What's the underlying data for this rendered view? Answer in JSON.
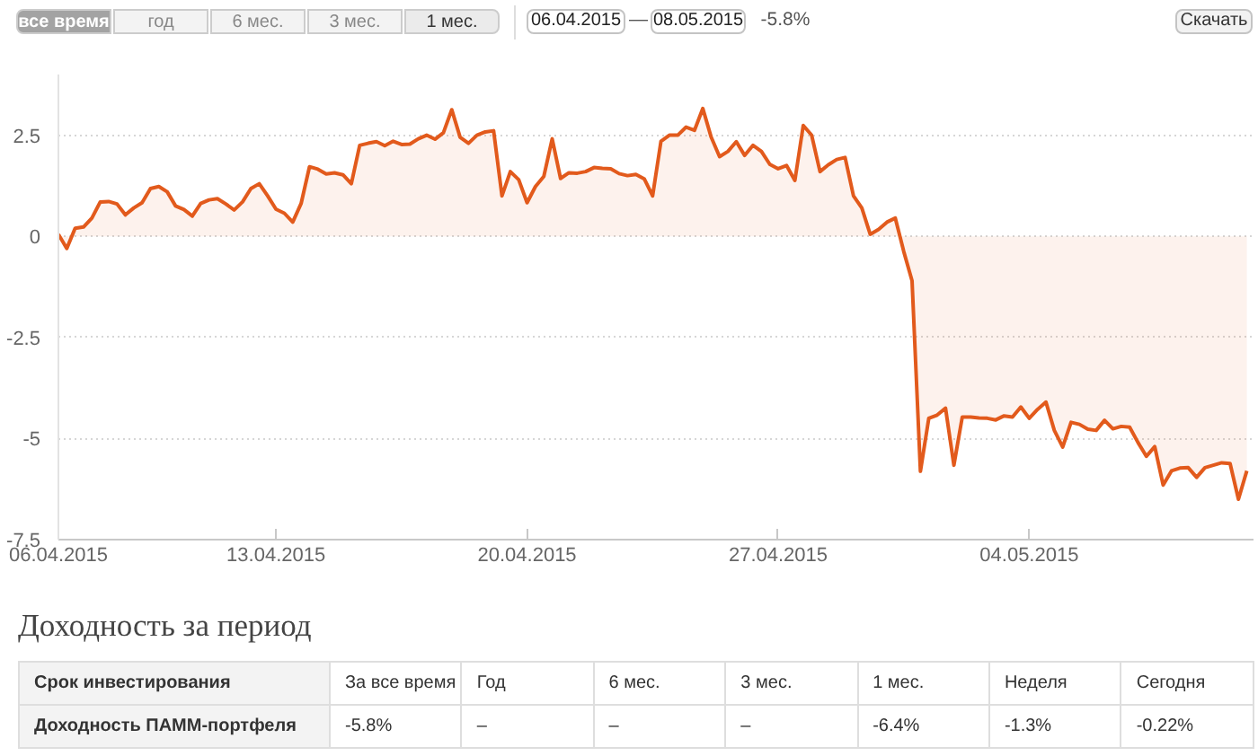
{
  "chart_data": [
    {
      "type": "other",
      "categories": [
        "все время",
        "год",
        "6 мес.",
        "3 мес.",
        "1 мес."
      ],
      "colors": [
        "#a3a3a3",
        "#f3f3f3",
        "#f3f3f3",
        "#f3f3f3",
        "#ebebeb"
      ],
      "annotations": [
        "06.04.2015",
        "—",
        "08.05.2015",
        "-5.8%",
        "Скачать"
      ]
    },
    {
      "type": "area",
      "color": "#e25a1c",
      "ylim": [
        -7.5,
        4
      ],
      "yticks": [
        -7.5,
        -5,
        -2.5,
        0,
        2.5
      ],
      "grid": "y",
      "categories": [
        "06.04.2015",
        null,
        null,
        null,
        null,
        null,
        null,
        null,
        null,
        null,
        null,
        null,
        null,
        null,
        null,
        null,
        null,
        null,
        null,
        null,
        null,
        null,
        null,
        null,
        null,
        null,
        "13.04.2015",
        null,
        null,
        null,
        null,
        null,
        null,
        null,
        null,
        null,
        null,
        null,
        null,
        null,
        null,
        null,
        null,
        null,
        null,
        null,
        null,
        null,
        null,
        null,
        null,
        null,
        null,
        null,
        null,
        null,
        "20.04.2015",
        null,
        null,
        null,
        null,
        null,
        null,
        null,
        null,
        null,
        null,
        null,
        null,
        null,
        null,
        null,
        null,
        null,
        null,
        null,
        null,
        null,
        null,
        null,
        null,
        null,
        null,
        null,
        null,
        null,
        "27.04.2015",
        null,
        null,
        null,
        null,
        null,
        null,
        null,
        null,
        null,
        null,
        null,
        null,
        null,
        null,
        null,
        null,
        null,
        null,
        null,
        null,
        null,
        null,
        null,
        null,
        null,
        null,
        null,
        null,
        null,
        "04.05.2015",
        null,
        null,
        null,
        null,
        null,
        null,
        null,
        null,
        null,
        null,
        null,
        null,
        null,
        null,
        null,
        null,
        null,
        null,
        null,
        null,
        null,
        null,
        null,
        null,
        null,
        null
      ],
      "values": [
        0.05,
        -0.3,
        0.2,
        0.23,
        0.45,
        0.85,
        0.86,
        0.8,
        0.53,
        0.7,
        0.83,
        1.18,
        1.23,
        1.1,
        0.75,
        0.66,
        0.5,
        0.81,
        0.9,
        0.93,
        0.8,
        0.65,
        0.85,
        1.18,
        1.3,
        1.0,
        0.67,
        0.57,
        0.35,
        0.81,
        1.72,
        1.66,
        1.54,
        1.57,
        1.52,
        1.3,
        2.25,
        2.3,
        2.34,
        2.24,
        2.35,
        2.27,
        2.28,
        2.41,
        2.5,
        2.4,
        2.56,
        3.13,
        2.45,
        2.3,
        2.5,
        2.58,
        2.61,
        1.0,
        1.6,
        1.4,
        0.83,
        1.23,
        1.48,
        2.41,
        1.43,
        1.57,
        1.56,
        1.6,
        1.7,
        1.68,
        1.67,
        1.55,
        1.5,
        1.53,
        1.42,
        1.0,
        2.35,
        2.5,
        2.5,
        2.7,
        2.62,
        3.16,
        2.45,
        1.97,
        2.1,
        2.34,
        2.0,
        2.25,
        2.1,
        1.78,
        1.67,
        1.75,
        1.38,
        2.74,
        2.5,
        1.6,
        1.77,
        1.9,
        1.95,
        1.0,
        0.7,
        0.05,
        0.17,
        0.35,
        0.45,
        -0.37,
        -1.1,
        -5.81,
        -4.5,
        -4.42,
        -4.25,
        -5.66,
        -4.47,
        -4.47,
        -4.49,
        -4.5,
        -4.54,
        -4.44,
        -4.47,
        -4.22,
        -4.5,
        -4.28,
        -4.1,
        -4.8,
        -5.21,
        -4.6,
        -4.65,
        -4.77,
        -4.8,
        -4.55,
        -4.76,
        -4.7,
        -4.72,
        -5.1,
        -5.44,
        -5.2,
        -6.15,
        -5.8,
        -5.73,
        -5.72,
        -5.96,
        -5.72,
        -5.66,
        -5.6,
        -5.62,
        -6.5,
        -5.8
      ]
    },
    {
      "type": "other",
      "title": "Доходность за период",
      "xlabel": "Срок инвестирования",
      "ylabel": "Доходность ПАММ-портфеля",
      "categories": [
        "За все время",
        "Год",
        "6 мес.",
        "3 мес.",
        "1 мес.",
        "Неделя",
        "Сегодня"
      ],
      "annotations": [
        "-5.8%",
        "–",
        "–",
        "–",
        "-6.4%",
        "-1.3%",
        "-0.22%"
      ]
    }
  ]
}
